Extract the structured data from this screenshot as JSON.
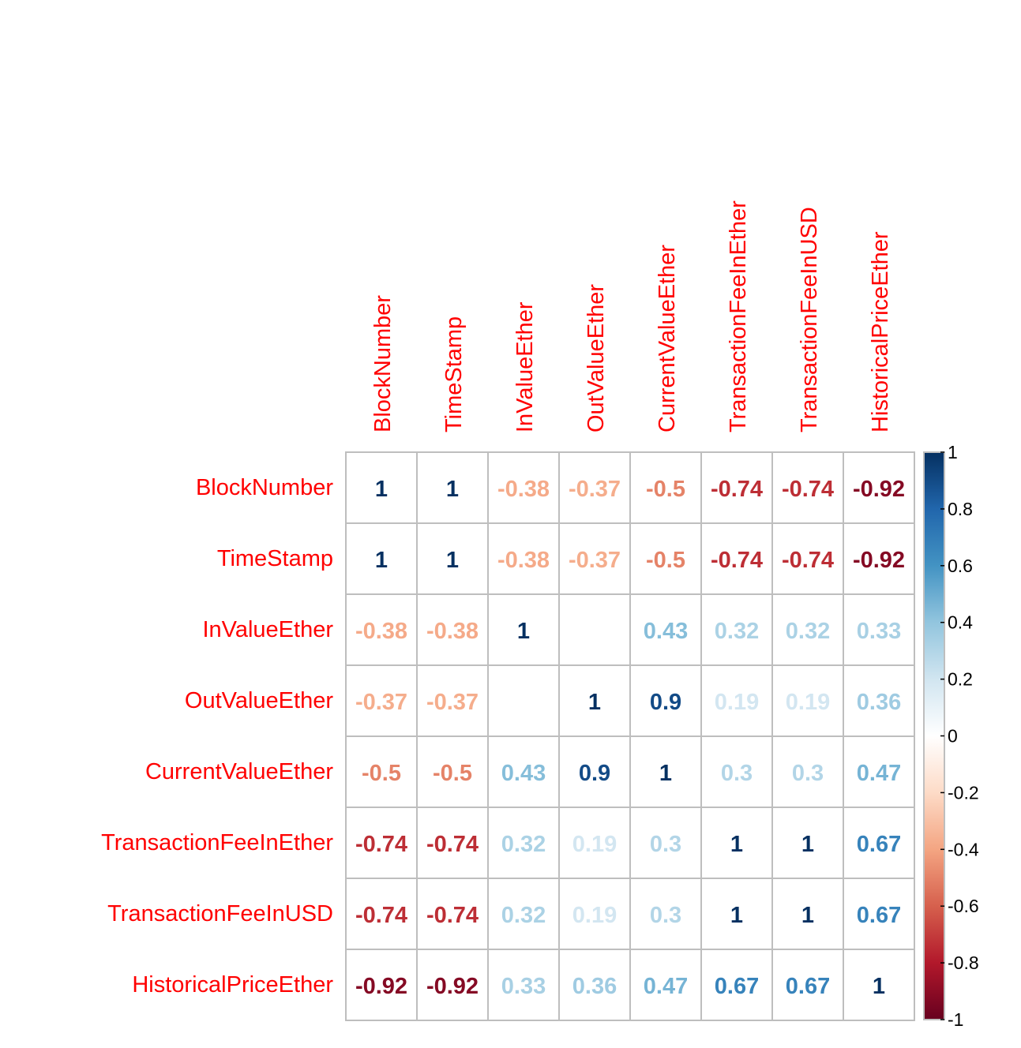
{
  "chart_data": {
    "type": "heatmap",
    "variables": [
      "BlockNumber",
      "TimeStamp",
      "InValueEther",
      "OutValueEther",
      "CurrentValueEther",
      "TransactionFeeInEther",
      "TransactionFeeInUSD",
      "HistoricalPriceEther"
    ],
    "values": [
      [
        1,
        1,
        -0.38,
        -0.37,
        -0.5,
        -0.74,
        -0.74,
        -0.92
      ],
      [
        1,
        1,
        -0.38,
        -0.37,
        -0.5,
        -0.74,
        -0.74,
        -0.92
      ],
      [
        -0.38,
        -0.38,
        1,
        0,
        0.43,
        0.32,
        0.32,
        0.33
      ],
      [
        -0.37,
        -0.37,
        0,
        1,
        0.9,
        0.19,
        0.19,
        0.36
      ],
      [
        -0.5,
        -0.5,
        0.43,
        0.9,
        1,
        0.3,
        0.3,
        0.47
      ],
      [
        -0.74,
        -0.74,
        0.32,
        0.19,
        0.3,
        1,
        1,
        0.67
      ],
      [
        -0.74,
        -0.74,
        0.32,
        0.19,
        0.3,
        1,
        1,
        0.67
      ],
      [
        -0.92,
        -0.92,
        0.33,
        0.36,
        0.47,
        0.67,
        0.67,
        1
      ]
    ],
    "colorbar": {
      "ticks": [
        "1",
        "0.8",
        "0.6",
        "0.4",
        "0.2",
        "0",
        "-0.2",
        "-0.4",
        "-0.6",
        "-0.8",
        "-1"
      ],
      "range": [
        -1,
        1
      ]
    },
    "label_color": "#FF0000",
    "grid_color": "#BEBEBE",
    "colors": [
      "#67001F",
      "#B2182B",
      "#D6604D",
      "#F4A582",
      "#FDDBC7",
      "#FFFFFF",
      "#D1E5F0",
      "#92C5DE",
      "#4393C3",
      "#2166AC",
      "#053061"
    ]
  }
}
